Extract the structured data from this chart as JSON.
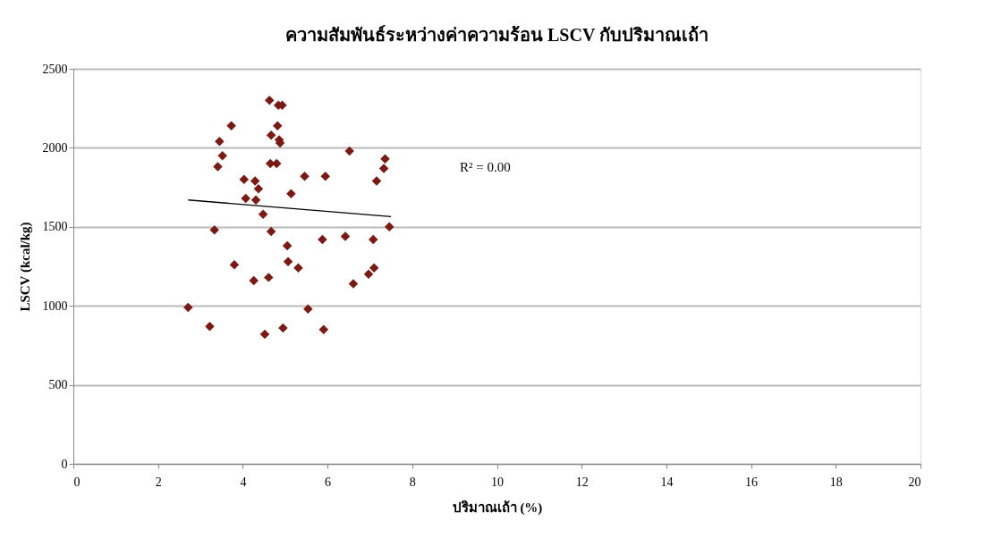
{
  "chart_data": {
    "type": "scatter",
    "title": "ความสัมพันธ์ระหว่างค่าความร้อน LSCV กับปริมาณเถ้า",
    "xlabel": "ปริมาณเถ้า (%)",
    "ylabel": "LSCV (kcal/kg)",
    "series": [
      {
        "color": "#7b1a12",
        "marker": "diamond",
        "x": [
          2.71,
          3.22,
          3.33,
          3.41,
          3.45,
          3.52,
          3.73,
          3.8,
          4.03,
          4.07,
          4.26,
          4.29,
          4.31,
          4.37,
          4.48,
          4.52,
          4.61,
          4.63,
          4.65,
          4.67,
          4.67,
          4.8,
          4.82,
          4.84,
          4.86,
          4.88,
          4.93,
          4.95,
          5.05,
          5.07,
          5.14,
          5.31,
          5.46,
          5.54,
          5.88,
          5.91,
          5.95,
          6.42,
          6.52,
          6.61,
          6.97,
          7.08,
          7.1,
          7.16,
          7.33,
          7.36,
          7.46
        ],
        "values": [
          990,
          870,
          1480,
          1880,
          2040,
          1950,
          2140,
          1260,
          1800,
          1680,
          1160,
          1790,
          1670,
          1740,
          1580,
          820,
          1180,
          2300,
          1900,
          2080,
          1470,
          1900,
          2140,
          2270,
          2050,
          2030,
          2270,
          860,
          1380,
          1280,
          1710,
          1240,
          1820,
          980,
          1420,
          850,
          1820,
          1440,
          1980,
          1140,
          1200,
          1420,
          1240,
          1790,
          1870,
          1930,
          1500
        ]
      },
      {
        "type": "line",
        "color": "#000000",
        "marker": "none",
        "line_style": "solid",
        "x": [
          2.71,
          7.5
        ],
        "values": [
          1670,
          1565
        ]
      }
    ],
    "annotations": [
      "R² = 0.00"
    ],
    "xlim": [
      0,
      20
    ],
    "xticks": [
      0,
      2,
      4,
      6,
      8,
      10,
      12,
      14,
      16,
      18,
      20
    ],
    "ylim": [
      0,
      2500
    ],
    "yticks": [
      0,
      500,
      1000,
      1500,
      2000,
      2500
    ],
    "grid": "y"
  }
}
